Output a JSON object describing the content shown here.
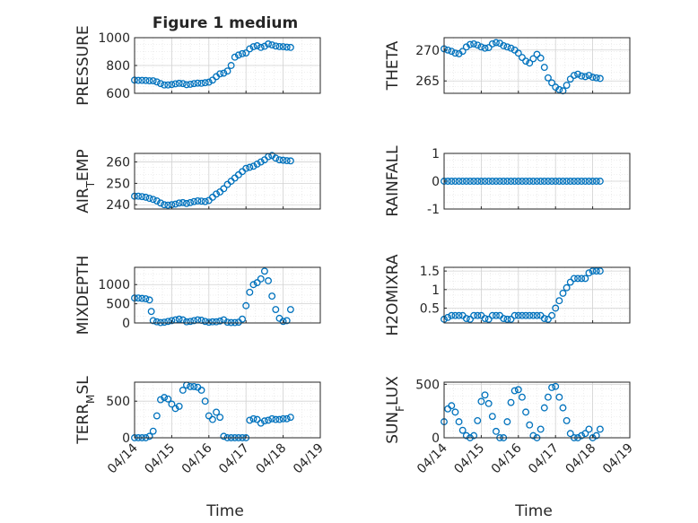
{
  "figure": {
    "title": "Figure 1 medium",
    "xlabel": "Time"
  },
  "style": {
    "marker_color": "#0072bd",
    "axis_color": "#262626",
    "grid_color": "#dfdfdf",
    "background": "#ffffff"
  },
  "chart_data": [
    {
      "type": "scatter",
      "ylabel": "PRESSURE",
      "title": "Figure 1 medium",
      "ylim": [
        600,
        1000
      ],
      "yticks": [
        600,
        800,
        1000
      ],
      "xlim": [
        0,
        5
      ],
      "xticks_shown": false,
      "grid": true,
      "series": [
        {
          "x": [
            0.0,
            0.1,
            0.2,
            0.3,
            0.4,
            0.5,
            0.6,
            0.7,
            0.8,
            0.9,
            1.0,
            1.1,
            1.2,
            1.3,
            1.4,
            1.5,
            1.6,
            1.7,
            1.8,
            1.9,
            2.0,
            2.1,
            2.2,
            2.3,
            2.4,
            2.5,
            2.6,
            2.7,
            2.8,
            2.9,
            3.0,
            3.1,
            3.2,
            3.3,
            3.4,
            3.5,
            3.6,
            3.7,
            3.8,
            3.9,
            4.0,
            4.1,
            4.2
          ],
          "y": [
            695,
            693,
            693,
            692,
            690,
            690,
            682,
            670,
            660,
            660,
            663,
            668,
            672,
            670,
            662,
            665,
            670,
            673,
            672,
            676,
            680,
            695,
            720,
            740,
            745,
            760,
            800,
            860,
            875,
            885,
            890,
            920,
            935,
            942,
            930,
            938,
            955,
            948,
            940,
            936,
            935,
            932,
            930
          ]
        }
      ]
    },
    {
      "type": "scatter",
      "ylabel": "THETA",
      "ylim": [
        263,
        272
      ],
      "yticks": [
        265,
        270
      ],
      "xlim": [
        0,
        5
      ],
      "xticks_shown": false,
      "grid": true,
      "series": [
        {
          "x": [
            0.0,
            0.1,
            0.2,
            0.3,
            0.4,
            0.5,
            0.6,
            0.7,
            0.8,
            0.9,
            1.0,
            1.1,
            1.2,
            1.3,
            1.4,
            1.5,
            1.6,
            1.7,
            1.8,
            1.9,
            2.0,
            2.1,
            2.2,
            2.3,
            2.4,
            2.5,
            2.6,
            2.7,
            2.8,
            2.9,
            3.0,
            3.1,
            3.2,
            3.3,
            3.4,
            3.5,
            3.6,
            3.7,
            3.8,
            3.9,
            4.0,
            4.1,
            4.2
          ],
          "y": [
            270.2,
            270.0,
            269.8,
            269.5,
            269.4,
            269.8,
            270.5,
            270.9,
            271.0,
            270.8,
            270.5,
            270.3,
            270.4,
            271.0,
            271.2,
            271.1,
            270.7,
            270.5,
            270.3,
            270.0,
            269.5,
            268.8,
            268.2,
            267.9,
            268.6,
            269.3,
            268.7,
            267.2,
            265.5,
            264.7,
            264.0,
            263.6,
            263.4,
            264.3,
            265.3,
            265.9,
            266.1,
            265.8,
            265.7,
            265.9,
            265.6,
            265.5,
            265.4
          ]
        }
      ]
    },
    {
      "type": "scatter",
      "ylabel": "AIR_TEMP",
      "ylim": [
        238,
        264
      ],
      "yticks": [
        240,
        250,
        260
      ],
      "xlim": [
        0,
        5
      ],
      "xticks_shown": false,
      "grid": true,
      "series": [
        {
          "x": [
            0.0,
            0.1,
            0.2,
            0.3,
            0.4,
            0.5,
            0.6,
            0.7,
            0.8,
            0.9,
            1.0,
            1.1,
            1.2,
            1.3,
            1.4,
            1.5,
            1.6,
            1.7,
            1.8,
            1.9,
            2.0,
            2.1,
            2.2,
            2.3,
            2.4,
            2.5,
            2.6,
            2.7,
            2.8,
            2.9,
            3.0,
            3.1,
            3.2,
            3.3,
            3.4,
            3.5,
            3.6,
            3.7,
            3.8,
            3.9,
            4.0,
            4.1,
            4.2
          ],
          "y": [
            244,
            244,
            243.8,
            243.5,
            243,
            242.5,
            241.8,
            240.8,
            240,
            239.8,
            240,
            240.3,
            240.8,
            241,
            240.6,
            241,
            241.5,
            241.8,
            241.7,
            241.5,
            242,
            243.5,
            245,
            246,
            247.5,
            249.5,
            251,
            252.5,
            254,
            255.5,
            257,
            257.5,
            258,
            259,
            260,
            261,
            262.5,
            263,
            261.8,
            261,
            260.8,
            260.6,
            260.5
          ]
        }
      ]
    },
    {
      "type": "scatter",
      "ylabel": "RAINFALL",
      "ylim": [
        -1,
        1
      ],
      "yticks": [
        -1,
        0,
        1
      ],
      "xlim": [
        0,
        5
      ],
      "xticks_shown": false,
      "grid": true,
      "series": [
        {
          "x": [
            0.0,
            0.1,
            0.2,
            0.3,
            0.4,
            0.5,
            0.6,
            0.7,
            0.8,
            0.9,
            1.0,
            1.1,
            1.2,
            1.3,
            1.4,
            1.5,
            1.6,
            1.7,
            1.8,
            1.9,
            2.0,
            2.1,
            2.2,
            2.3,
            2.4,
            2.5,
            2.6,
            2.7,
            2.8,
            2.9,
            3.0,
            3.1,
            3.2,
            3.3,
            3.4,
            3.5,
            3.6,
            3.7,
            3.8,
            3.9,
            4.0,
            4.1,
            4.2
          ],
          "y": [
            0,
            0,
            0,
            0,
            0,
            0,
            0,
            0,
            0,
            0,
            0,
            0,
            0,
            0,
            0,
            0,
            0,
            0,
            0,
            0,
            0,
            0,
            0,
            0,
            0,
            0,
            0,
            0,
            0,
            0,
            0,
            0,
            0,
            0,
            0,
            0,
            0,
            0,
            0,
            0,
            0,
            0,
            0
          ]
        }
      ]
    },
    {
      "type": "scatter",
      "ylabel": "MIXDEPTH",
      "ylim": [
        0,
        1450
      ],
      "yticks": [
        0,
        500,
        1000
      ],
      "xlim": [
        0,
        5
      ],
      "xticks_shown": false,
      "grid": true,
      "series": [
        {
          "x": [
            0.0,
            0.1,
            0.2,
            0.3,
            0.4,
            0.45,
            0.5,
            0.6,
            0.7,
            0.8,
            0.9,
            1.0,
            1.1,
            1.2,
            1.3,
            1.4,
            1.5,
            1.6,
            1.7,
            1.8,
            1.9,
            2.0,
            2.1,
            2.2,
            2.3,
            2.4,
            2.5,
            2.6,
            2.7,
            2.8,
            2.9,
            3.0,
            3.1,
            3.2,
            3.3,
            3.4,
            3.5,
            3.6,
            3.7,
            3.8,
            3.9,
            4.0,
            4.1,
            4.2
          ],
          "y": [
            650,
            650,
            640,
            630,
            600,
            300,
            60,
            30,
            10,
            20,
            40,
            60,
            80,
            100,
            80,
            30,
            40,
            60,
            80,
            70,
            40,
            20,
            30,
            30,
            50,
            80,
            20,
            10,
            10,
            20,
            100,
            450,
            800,
            1000,
            1050,
            1150,
            1350,
            1100,
            700,
            350,
            120,
            40,
            60,
            350
          ]
        }
      ]
    },
    {
      "type": "scatter",
      "ylabel": "H2OMIXRA",
      "ylim": [
        0.1,
        1.6
      ],
      "yticks": [
        0.5,
        1,
        1.5
      ],
      "xlim": [
        0,
        5
      ],
      "xticks_shown": false,
      "grid": true,
      "series": [
        {
          "x": [
            0.0,
            0.1,
            0.2,
            0.3,
            0.4,
            0.5,
            0.6,
            0.7,
            0.8,
            0.9,
            1.0,
            1.1,
            1.2,
            1.3,
            1.4,
            1.5,
            1.6,
            1.7,
            1.8,
            1.9,
            2.0,
            2.1,
            2.2,
            2.3,
            2.4,
            2.5,
            2.6,
            2.7,
            2.8,
            2.9,
            3.0,
            3.1,
            3.2,
            3.3,
            3.4,
            3.5,
            3.6,
            3.7,
            3.8,
            3.9,
            4.0,
            4.1,
            4.2
          ],
          "y": [
            0.2,
            0.25,
            0.3,
            0.3,
            0.3,
            0.3,
            0.22,
            0.2,
            0.3,
            0.3,
            0.3,
            0.22,
            0.2,
            0.3,
            0.3,
            0.3,
            0.22,
            0.2,
            0.2,
            0.3,
            0.3,
            0.3,
            0.3,
            0.3,
            0.3,
            0.3,
            0.3,
            0.22,
            0.2,
            0.3,
            0.5,
            0.7,
            0.9,
            1.05,
            1.2,
            1.3,
            1.3,
            1.3,
            1.3,
            1.45,
            1.5,
            1.5,
            1.5
          ]
        }
      ]
    },
    {
      "type": "scatter",
      "ylabel": "TERR_MSL",
      "ylim": [
        0,
        760
      ],
      "yticks": [
        0,
        500
      ],
      "xlim": [
        0,
        5
      ],
      "xticks": [
        "04/14",
        "04/15",
        "04/16",
        "04/17",
        "04/18",
        "04/19"
      ],
      "xticks_shown": true,
      "grid": true,
      "series": [
        {
          "x": [
            0.0,
            0.1,
            0.2,
            0.3,
            0.4,
            0.5,
            0.6,
            0.7,
            0.8,
            0.9,
            1.0,
            1.1,
            1.2,
            1.3,
            1.4,
            1.5,
            1.6,
            1.7,
            1.8,
            1.9,
            2.0,
            2.1,
            2.2,
            2.3,
            2.4,
            2.5,
            2.6,
            2.7,
            2.8,
            2.9,
            3.0,
            3.1,
            3.2,
            3.3,
            3.4,
            3.5,
            3.6,
            3.7,
            3.8,
            3.9,
            4.0,
            4.1,
            4.2
          ],
          "y": [
            0,
            0,
            0,
            0,
            20,
            90,
            300,
            520,
            550,
            530,
            460,
            400,
            430,
            650,
            720,
            700,
            700,
            690,
            650,
            500,
            300,
            250,
            350,
            280,
            20,
            0,
            0,
            0,
            0,
            0,
            0,
            240,
            260,
            250,
            200,
            230,
            240,
            260,
            250,
            250,
            260,
            260,
            280
          ]
        }
      ]
    },
    {
      "type": "scatter",
      "ylabel": "SUN_FLUX",
      "ylim": [
        0,
        520
      ],
      "yticks": [
        0,
        500
      ],
      "xlim": [
        0,
        5
      ],
      "xticks": [
        "04/14",
        "04/15",
        "04/16",
        "04/17",
        "04/18",
        "04/19"
      ],
      "xticks_shown": true,
      "grid": true,
      "series": [
        {
          "x": [
            0.0,
            0.1,
            0.2,
            0.3,
            0.4,
            0.5,
            0.6,
            0.7,
            0.8,
            0.9,
            1.0,
            1.1,
            1.2,
            1.3,
            1.4,
            1.5,
            1.6,
            1.7,
            1.8,
            1.9,
            2.0,
            2.1,
            2.2,
            2.3,
            2.4,
            2.5,
            2.6,
            2.7,
            2.8,
            2.9,
            3.0,
            3.1,
            3.2,
            3.3,
            3.4,
            3.5,
            3.6,
            3.7,
            3.8,
            3.9,
            4.0,
            4.1,
            4.2
          ],
          "y": [
            150,
            270,
            300,
            240,
            150,
            70,
            20,
            0,
            20,
            160,
            340,
            400,
            320,
            200,
            60,
            0,
            0,
            150,
            330,
            440,
            450,
            380,
            240,
            120,
            20,
            0,
            80,
            280,
            380,
            470,
            480,
            380,
            280,
            160,
            40,
            0,
            0,
            20,
            40,
            80,
            0,
            20,
            80
          ]
        }
      ]
    }
  ]
}
